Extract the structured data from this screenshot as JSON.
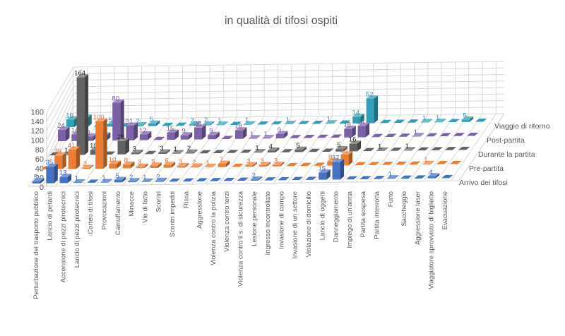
{
  "title": "in qualità di tifosi ospiti",
  "chart_data": {
    "type": "bar",
    "subtype": "3d-column-depth-series",
    "title": "in qualità di tifosi ospiti",
    "xlabel": "",
    "ylabel": "",
    "grid": true,
    "legend_position": "right-depth-axis",
    "value_axis": {
      "min": 0,
      "max": 160,
      "step": 20,
      "ticks": [
        0,
        20,
        40,
        60,
        80,
        100,
        120,
        140,
        160
      ]
    },
    "categories": [
      "Perturbazione del trasporto pubblico",
      "Lancio di petardi",
      "Accensione di pezzi pirotecnici",
      "Lancio di pezzi pirotecnici",
      "Corteo di tifosi",
      "Provocazioni",
      "Camuffamento",
      "Minacce",
      "Vie di fatto",
      "Scontri",
      "Scontri impediti",
      "Rissa",
      "Aggressione",
      "Violenza contro la polizia",
      "Violenza contro terzi",
      "Violenza contro il s. di sicurezza",
      "Lesione personale",
      "Ingresso incontrollato",
      "Invasione di campo",
      "Invasione di un settore",
      "Violazione di domicilio",
      "Lancio di oggetti",
      "Danneggiamento",
      "Impiego di un'arma",
      "Partita sospesa",
      "Partita interrotta",
      "Furto",
      "Saccheggio",
      "Aggressione laser",
      "Viaggiatore sprovvisto di biglietto",
      "Evacuazione"
    ],
    "series": [
      {
        "name": "Arrivo dei tifosi",
        "color": "#4472C4",
        "values": [
          5,
          35,
          13,
          1,
          0,
          1,
          5,
          2,
          1,
          2,
          0,
          0,
          0,
          0,
          0,
          0,
          2,
          0,
          0,
          0,
          0,
          15,
          37,
          0,
          0,
          0,
          1,
          0,
          0,
          4,
          0
        ]
      },
      {
        "name": "Pre-partita",
        "color": "#ED7D31",
        "values": [
          0,
          29,
          41,
          2,
          100,
          10,
          8,
          3,
          5,
          6,
          3,
          2,
          1,
          7,
          0,
          3,
          3,
          3,
          0,
          0,
          0,
          9,
          23,
          0,
          0,
          0,
          0,
          0,
          1,
          0,
          0
        ]
      },
      {
        "name": "Durante la partita",
        "color": "#636363",
        "values": [
          0,
          1,
          164,
          10,
          0,
          28,
          3,
          0,
          3,
          1,
          2,
          0,
          0,
          0,
          0,
          1,
          4,
          0,
          5,
          0,
          0,
          5,
          16,
          0,
          1,
          0,
          1,
          0,
          0,
          0,
          0
        ]
      },
      {
        "name": "Post-partita",
        "color": "#7C61A8",
        "values": [
          24,
          14,
          9,
          11,
          80,
          31,
          12,
          0,
          15,
          9,
          25,
          9,
          0,
          18,
          1,
          1,
          9,
          0,
          0,
          0,
          0,
          18,
          24,
          0,
          0,
          0,
          1,
          0,
          0,
          0,
          0
        ]
      },
      {
        "name": "Viaggio di ritorno",
        "color": "#2FA0B6",
        "values": [
          16,
          20,
          0,
          5,
          0,
          2,
          5,
          0,
          0,
          2,
          2,
          1,
          0,
          1,
          0,
          0,
          1,
          0,
          0,
          1,
          0,
          14,
          52,
          0,
          0,
          0,
          1,
          1,
          0,
          5,
          0
        ]
      }
    ]
  },
  "colors": {
    "axis_text": "#595959",
    "grid_line": "#d9d9d9",
    "title_text": "#595959"
  }
}
